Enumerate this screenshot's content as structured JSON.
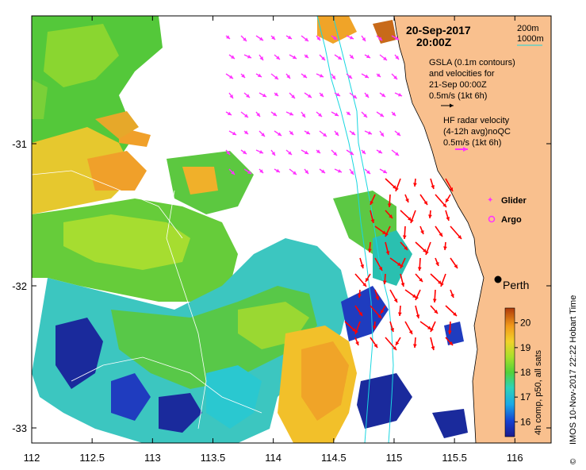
{
  "header": {
    "date": "20-Sep-2017",
    "time": "20:00Z"
  },
  "depth_legend": {
    "contour_a": "200m",
    "contour_b": "1000m",
    "line_color": "#19d6e0"
  },
  "gsla_legend": {
    "line1": "GSLA (0.1m contours)",
    "line2": "and velocities for",
    "line3": "21-Sep 00:00Z",
    "scale": "0.5m/s (1kt 6h)",
    "arrow_color": "#000000"
  },
  "hf_legend": {
    "line1": "HF radar velocity",
    "line2": "(4-12h avg)noQC",
    "scale": "0.5m/s (1kt 6h)",
    "arrow_color": "#ff33ff"
  },
  "markers": {
    "glider": "Glider",
    "argo": "Argo",
    "city": "Perth",
    "marker_color": "#ff33ff"
  },
  "colorbar": {
    "label": "4h comp, p50, all sats",
    "ticks": [
      "16",
      "17",
      "18",
      "19",
      "20"
    ],
    "range": [
      15.4,
      20.6
    ]
  },
  "credit": "IMOS 10-Nov-2017 22:22 Hobart Time",
  "copyright_symbol": "©",
  "axes": {
    "x_ticks": [
      "112",
      "112.5",
      "113",
      "113.5",
      "114",
      "114.5",
      "115",
      "115.5",
      "116"
    ],
    "y_ticks": [
      "-31",
      "-32",
      "-33"
    ]
  },
  "colors": {
    "land": "#f9c08e",
    "radar_arrow": "#ff0000",
    "hf_arrow": "#ff33ff"
  }
}
